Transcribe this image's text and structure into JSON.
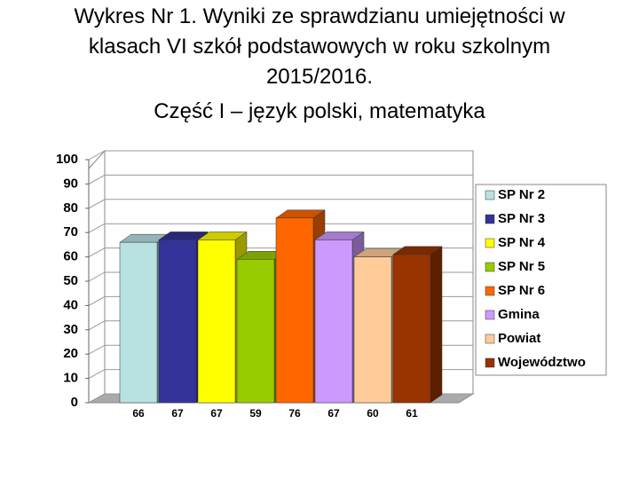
{
  "chart_data": {
    "type": "bar3d",
    "title": "Wykres Nr 1. Wyniki ze sprawdzianu umiejętności w klasach VI szkół podstawowych w roku szkolnym 2015/2016.",
    "subtitle": "Część I – język polski, matematyka",
    "ylim": [
      0,
      100
    ],
    "yticks": [
      0,
      10,
      20,
      30,
      40,
      50,
      60,
      70,
      80,
      90,
      100
    ],
    "grid": true,
    "legend": "right",
    "series": [
      {
        "name": "SP Nr 2",
        "color": "#b8e2e2",
        "values": [
          66
        ]
      },
      {
        "name": "SP Nr 3",
        "color": "#333399",
        "values": [
          67
        ]
      },
      {
        "name": "SP Nr 4",
        "color": "#ffff00",
        "values": [
          67
        ]
      },
      {
        "name": "SP Nr 5",
        "color": "#99cc00",
        "values": [
          59
        ]
      },
      {
        "name": "SP Nr 6",
        "color": "#ff6600",
        "values": [
          76
        ]
      },
      {
        "name": "Gmina",
        "color": "#cc99ff",
        "values": [
          67
        ]
      },
      {
        "name": "Powiat",
        "color": "#ffcc99",
        "values": [
          60
        ]
      },
      {
        "name": "Województwo",
        "color": "#993300",
        "values": [
          61
        ]
      }
    ]
  }
}
